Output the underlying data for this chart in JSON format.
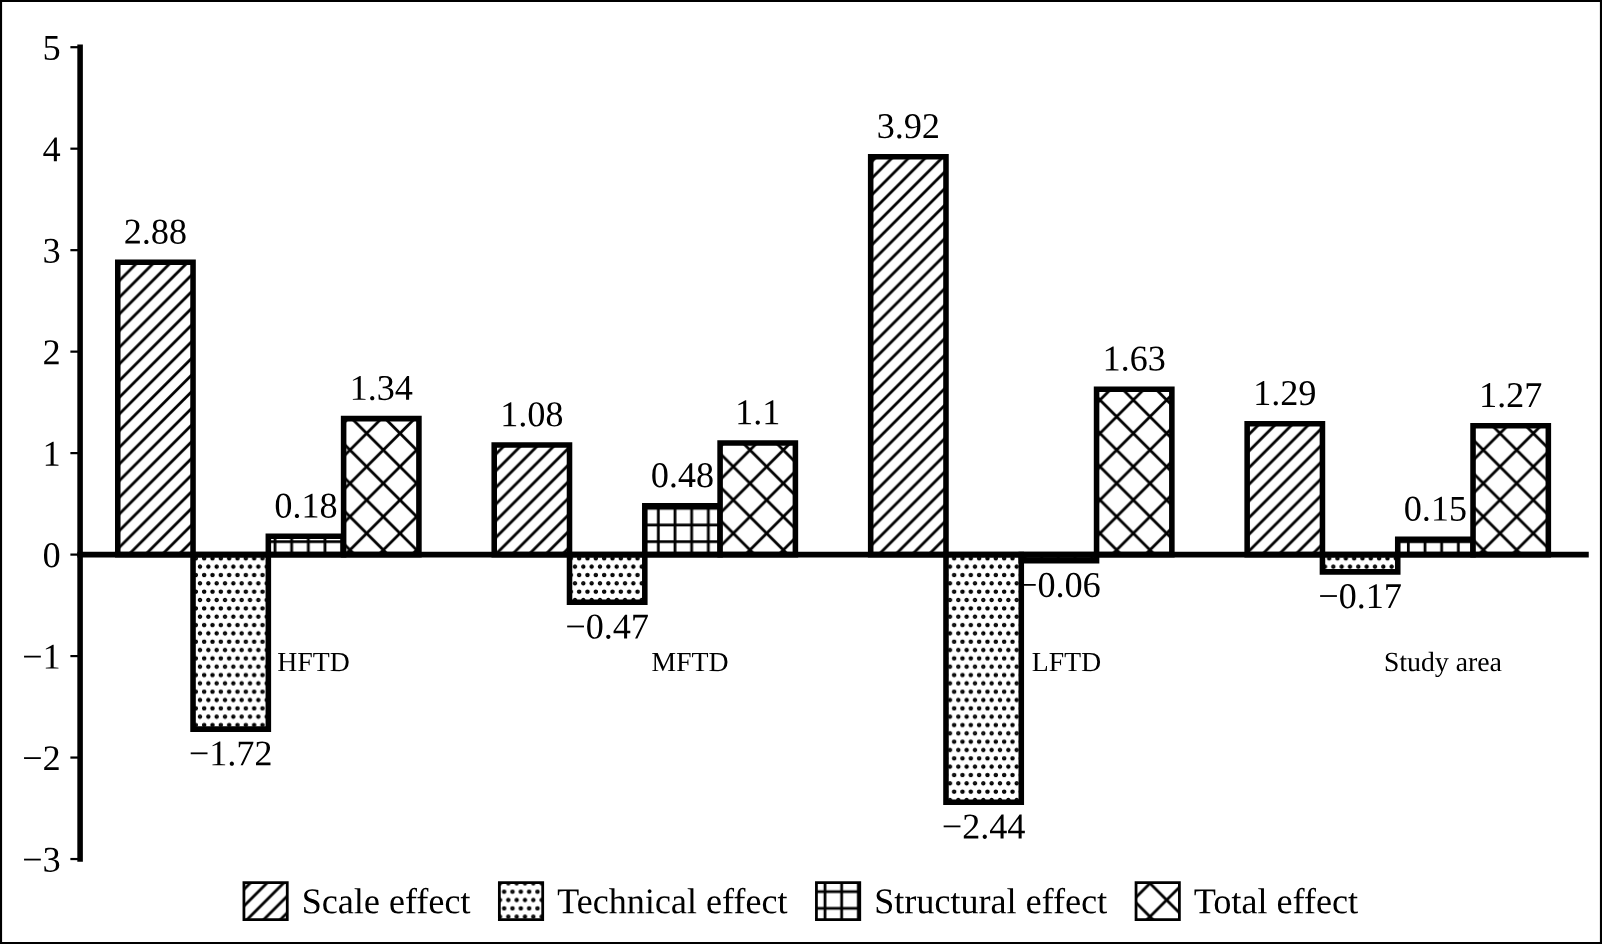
{
  "chart_data": {
    "type": "bar",
    "categories": [
      "HFTD",
      "MFTD",
      "LFTD",
      "Study area"
    ],
    "series": [
      {
        "name": "Scale effect",
        "color": "#000000",
        "values": [
          2.88,
          1.08,
          3.92,
          1.29
        ]
      },
      {
        "name": "Technical effect",
        "color": "#000000",
        "values": [
          -1.72,
          -0.47,
          -2.44,
          -0.17
        ]
      },
      {
        "name": "Structural effect",
        "color": "#000000",
        "values": [
          0.18,
          0.48,
          -0.06,
          0.15
        ]
      },
      {
        "name": "Total effect",
        "color": "#000000",
        "values": [
          1.34,
          1.1,
          1.63,
          1.27
        ]
      }
    ],
    "ylim": [
      -3,
      5
    ],
    "yticks": [
      -3,
      -2,
      -1,
      0,
      1,
      2,
      3,
      4,
      5
    ],
    "data_labels": true,
    "legend": "bottom"
  }
}
